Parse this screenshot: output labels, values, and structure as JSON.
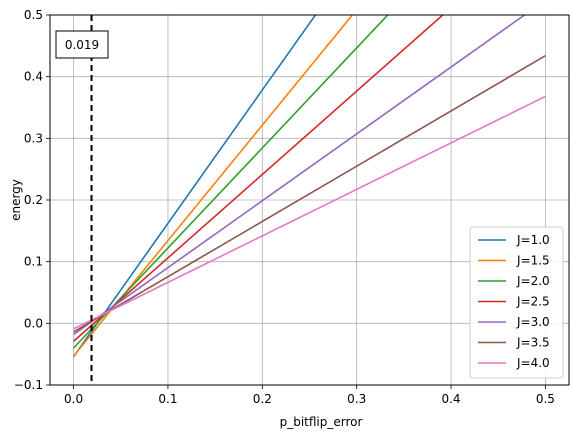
{
  "chart_data": {
    "type": "line",
    "xlabel": "p_bitflip_error",
    "ylabel": "energy",
    "xlim": [
      -0.025,
      0.525
    ],
    "ylim": [
      -0.1,
      0.5
    ],
    "x_ticks": [
      0.0,
      0.1,
      0.2,
      0.3,
      0.4,
      0.5
    ],
    "x_tick_labels": [
      "0.0",
      "0.1",
      "0.2",
      "0.3",
      "0.4",
      "0.5"
    ],
    "y_ticks": [
      -0.1,
      0.0,
      0.1,
      0.2,
      0.3,
      0.4,
      0.5
    ],
    "y_tick_labels": [
      "−0.1",
      "0.0",
      "0.1",
      "0.2",
      "0.3",
      "0.4",
      "0.5"
    ],
    "grid": true,
    "legend_position": "lower-right",
    "series": [
      {
        "name": "J=1.0",
        "color": "#1f77b4",
        "x": [
          0.0,
          0.5
        ],
        "y": [
          -0.054,
          1.027
        ]
      },
      {
        "name": "J=1.5",
        "color": "#ff7f0e",
        "x": [
          0.0,
          0.5
        ],
        "y": [
          -0.053,
          0.883
        ]
      },
      {
        "name": "J=2.0",
        "color": "#2ca02c",
        "x": [
          0.0,
          0.5
        ],
        "y": [
          -0.04,
          0.771
        ]
      },
      {
        "name": "J=2.5",
        "color": "#d62728",
        "x": [
          0.0,
          0.5
        ],
        "y": [
          -0.029,
          0.647
        ]
      },
      {
        "name": "J=3.0",
        "color": "#9467bd",
        "x": [
          0.0,
          0.5
        ],
        "y": [
          -0.018,
          0.524
        ]
      },
      {
        "name": "J=3.5",
        "color": "#8c564b",
        "x": [
          0.0,
          0.5
        ],
        "y": [
          -0.014,
          0.434
        ]
      },
      {
        "name": "J=4.0",
        "color": "#e377c2",
        "x": [
          0.0,
          0.5
        ],
        "y": [
          -0.009,
          0.368
        ]
      }
    ],
    "vline": {
      "x": 0.019,
      "label": "0.019",
      "color": "#000000",
      "style": "dashed"
    }
  }
}
